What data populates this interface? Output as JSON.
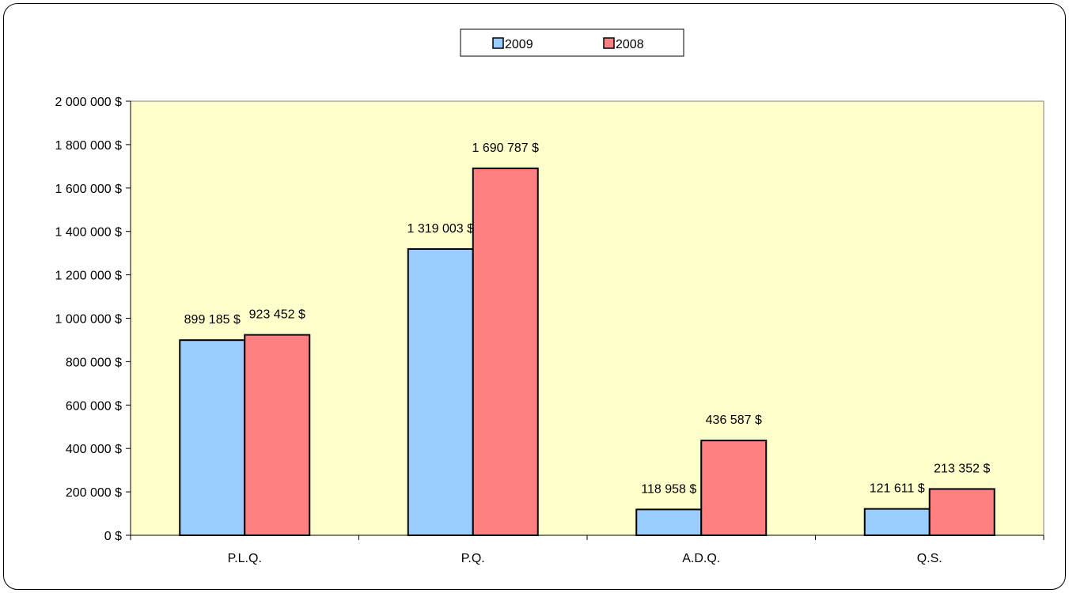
{
  "chart_data": {
    "type": "bar",
    "title": "",
    "xlabel": "",
    "ylabel": "",
    "categories": [
      "P.L.Q.",
      "P.Q.",
      "A.D.Q.",
      "Q.S."
    ],
    "series": [
      {
        "name": "2009",
        "color": "#99CCFF",
        "values": [
          899185,
          1319003,
          118958,
          121611
        ],
        "labels": [
          "899 185 $",
          "1 319 003 $",
          "118 958 $",
          "121 611 $"
        ]
      },
      {
        "name": "2008",
        "color": "#FF8080",
        "values": [
          923452,
          1690787,
          436587,
          213352
        ],
        "labels": [
          "923 452 $",
          "1 690 787 $",
          "436 587 $",
          "213 352 $"
        ]
      }
    ],
    "ylim": [
      0,
      2000000
    ],
    "yticks": [
      0,
      200000,
      400000,
      600000,
      800000,
      1000000,
      1200000,
      1400000,
      1600000,
      1800000,
      2000000
    ],
    "ytick_labels": [
      "0 $",
      "200 000 $",
      "400 000 $",
      "600 000 $",
      "800 000 $",
      "1 000 000 $",
      "1 200 000 $",
      "1 400 000 $",
      "1 600 000 $",
      "1 800 000 $",
      "2 000 000 $"
    ],
    "grid": false,
    "legend": "top-center",
    "plot_background": "#FFFFCC"
  }
}
